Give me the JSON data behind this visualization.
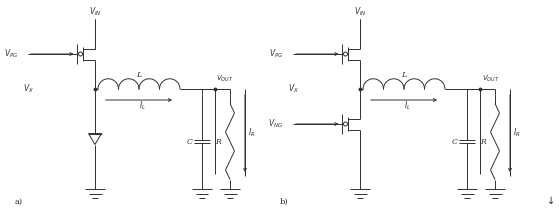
{
  "fig_width": 5.59,
  "fig_height": 2.09,
  "dpi": 100,
  "bg_color": "#ffffff",
  "line_color": "#303030",
  "line_width": 0.7,
  "text_color": "#303030",
  "label_a": "a)",
  "label_b": "b)",
  "footnote": "↓",
  "xlim": [
    0,
    55.9
  ],
  "ylim": [
    0,
    20.9
  ]
}
